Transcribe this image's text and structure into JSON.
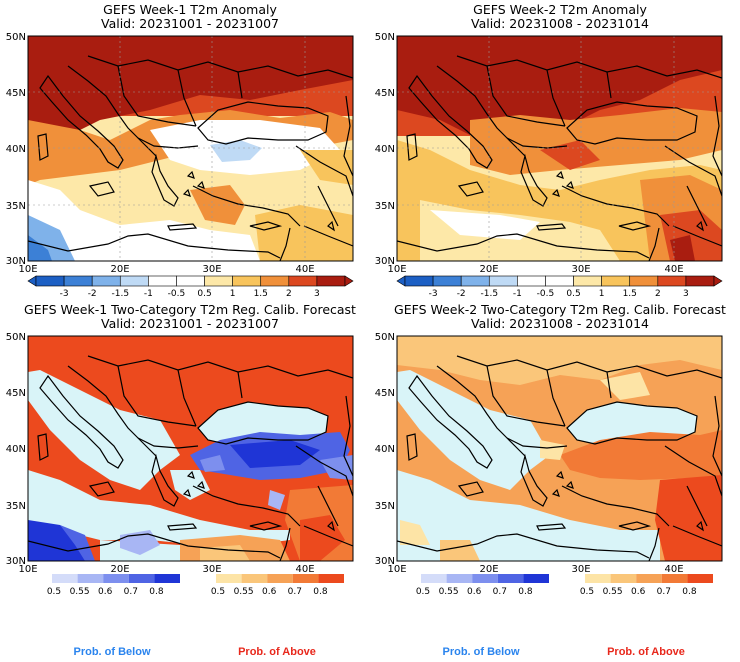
{
  "panels": [
    {
      "title": "GEFS Week-1 T2m Anomaly",
      "valid": "Valid: 20231001 - 20231007",
      "lat_labels": [
        "50N",
        "45N",
        "40N",
        "35N",
        "30N"
      ],
      "lon_labels": [
        "10E",
        "20E",
        "30E",
        "40E"
      ]
    },
    {
      "title": "GEFS Week-2 T2m Anomaly",
      "valid": "Valid: 20231008 - 20231014",
      "lat_labels": [
        "50N",
        "45N",
        "40N",
        "35N",
        "30N"
      ],
      "lon_labels": [
        "10E",
        "20E",
        "30E",
        "40E"
      ]
    },
    {
      "title": "GEFS Week-1 Two-Category T2m Reg. Calib. Forecast",
      "valid": "Valid: 20231001 - 20231007",
      "lat_labels": [
        "50N",
        "45N",
        "40N",
        "35N",
        "30N"
      ],
      "lon_labels": [
        "10E",
        "20E",
        "30E",
        "40E"
      ]
    },
    {
      "title": "GEFS Week-2 Two-Category T2m Reg. Calib. Forecast",
      "valid": "Valid: 20231008 - 20231014",
      "lat_labels": [
        "50N",
        "45N",
        "40N",
        "35N",
        "30N"
      ],
      "lon_labels": [
        "10E",
        "20E",
        "30E",
        "40E"
      ]
    }
  ],
  "anomaly_colorbar": {
    "ticks": [
      "-3",
      "-2",
      "-1.5",
      "-1",
      "-0.5",
      "0.5",
      "1",
      "1.5",
      "2",
      "3"
    ],
    "colors": [
      "#1c5fc4",
      "#3c80d6",
      "#7fb2ea",
      "#bfdaf5",
      "#ffffff",
      "#ffffff",
      "#fde8a8",
      "#f8c45c",
      "#f0903a",
      "#dc4820",
      "#a91d10"
    ]
  },
  "prob_colorbars": {
    "below": {
      "ticks": [
        "0.5",
        "0.55",
        "0.6",
        "0.7",
        "0.8"
      ],
      "colors": [
        "#d4dcf9",
        "#a8b6f4",
        "#7d8fee",
        "#4f64e4",
        "#1f35d6"
      ]
    },
    "above": {
      "ticks": [
        "0.5",
        "0.55",
        "0.6",
        "0.7",
        "0.8"
      ],
      "colors": [
        "#fde4a6",
        "#fac67a",
        "#f6a256",
        "#f27a36",
        "#ec4a1e"
      ]
    }
  },
  "legend": {
    "below_label": "Prob. of Below",
    "above_label": "Prob. of Above",
    "below_color": "#2a84ee",
    "above_color": "#e8281c"
  },
  "map_colors": {
    "sea_week1_prob": "#d9f4f8",
    "sea_week2_prob": "#d9f4f8"
  }
}
